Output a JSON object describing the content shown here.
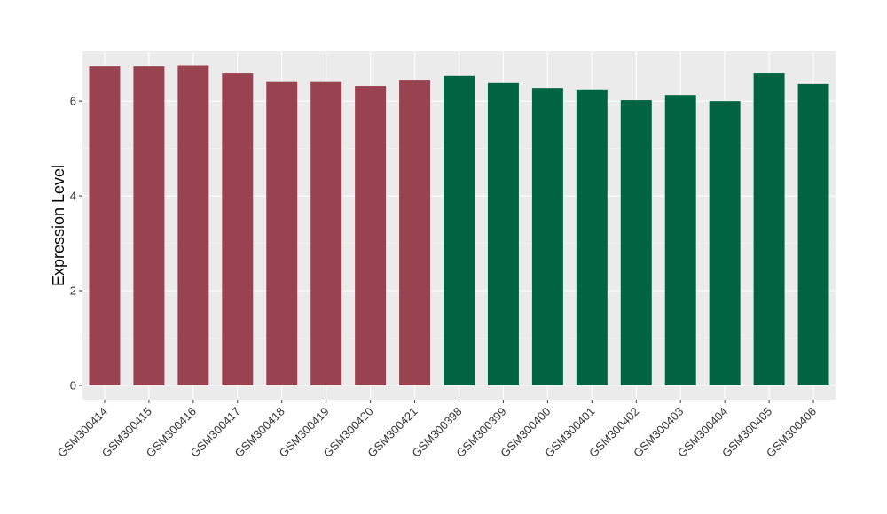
{
  "chart_data": {
    "type": "bar",
    "title": "",
    "xlabel": "",
    "ylabel": "Expression Level",
    "ylim": [
      -0.3,
      7.05
    ],
    "yticks": [
      0,
      2,
      4,
      6
    ],
    "grid": true,
    "background": "#ebebeb",
    "categories": [
      "GSM300414",
      "GSM300415",
      "GSM300416",
      "GSM300417",
      "GSM300418",
      "GSM300419",
      "GSM300420",
      "GSM300421",
      "GSM300398",
      "GSM300399",
      "GSM300400",
      "GSM300401",
      "GSM300402",
      "GSM300403",
      "GSM300404",
      "GSM300405",
      "GSM300406"
    ],
    "values": [
      6.73,
      6.73,
      6.76,
      6.6,
      6.42,
      6.42,
      6.32,
      6.45,
      6.53,
      6.38,
      6.28,
      6.25,
      6.02,
      6.13,
      6.0,
      6.6,
      6.36
    ],
    "group_colors": [
      "#9a4350",
      "#9a4350",
      "#9a4350",
      "#9a4350",
      "#9a4350",
      "#9a4350",
      "#9a4350",
      "#9a4350",
      "#006342",
      "#006342",
      "#006342",
      "#006342",
      "#006342",
      "#006342",
      "#006342",
      "#006342",
      "#006342"
    ]
  }
}
